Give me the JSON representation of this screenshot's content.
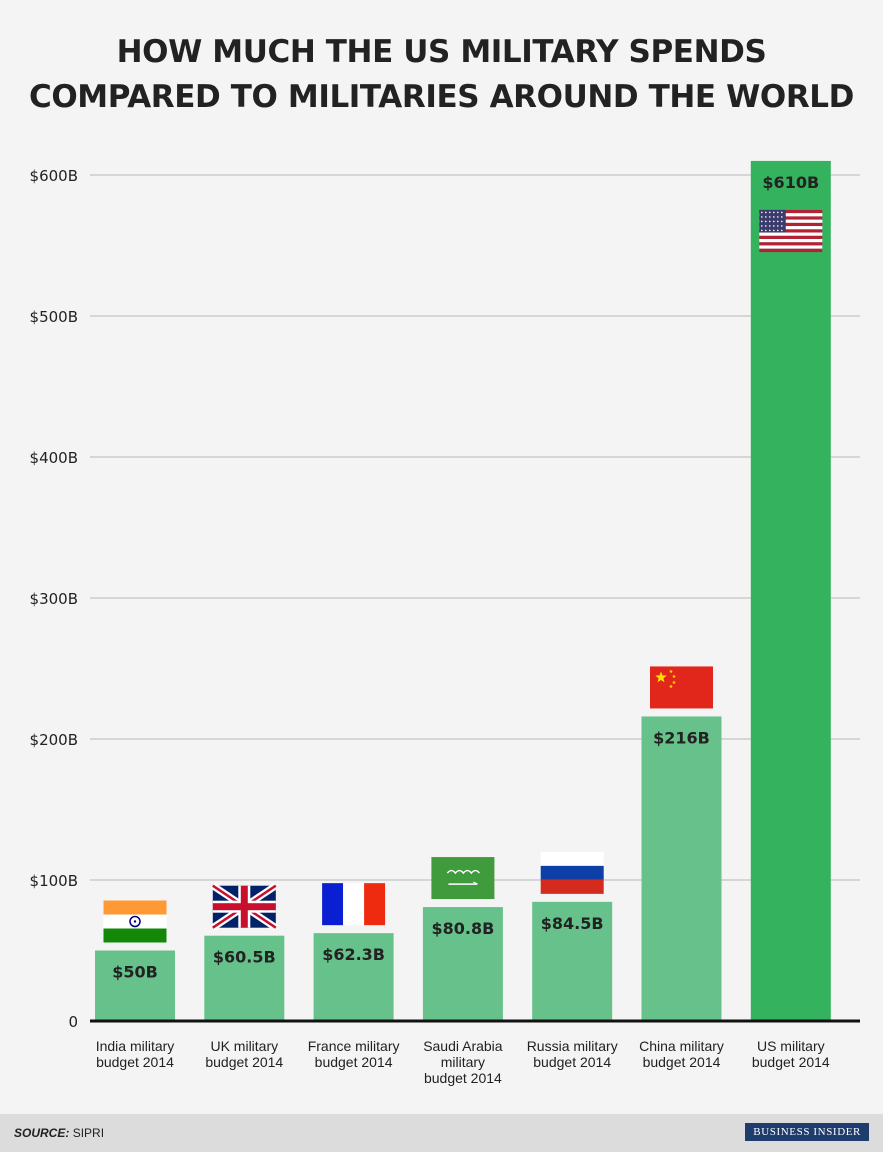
{
  "chart_data": {
    "type": "bar",
    "title": "HOW MUCH THE US MILITARY SPENDS COMPARED TO MILITARIES AROUND THE WORLD",
    "title_lines": [
      "HOW MUCH THE US MILITARY SPENDS",
      "COMPARED TO MILITARIES AROUND THE WORLD"
    ],
    "categories": [
      "India military budget 2014",
      "UK military budget 2014",
      "France military budget 2014",
      "Saudi Arabia military budget 2014",
      "Russia military budget 2014",
      "China military budget 2014",
      "US military budget 2014"
    ],
    "category_lines": [
      [
        "India military",
        "budget 2014"
      ],
      [
        "UK military",
        "budget 2014"
      ],
      [
        "France military",
        "budget 2014"
      ],
      [
        "Saudi Arabia",
        "military",
        "budget 2014"
      ],
      [
        "Russia military",
        "budget 2014"
      ],
      [
        "China military",
        "budget 2014"
      ],
      [
        "US military",
        "budget 2014"
      ]
    ],
    "values": [
      50,
      60.5,
      62.3,
      80.8,
      84.5,
      216,
      610
    ],
    "value_labels": [
      "$50B",
      "$60.5B",
      "$62.3B",
      "$80.8B",
      "$84.5B",
      "$216B",
      "$610B"
    ],
    "flags": [
      "india-flag",
      "uk-flag",
      "france-flag",
      "saudi-arabia-flag",
      "russia-flag",
      "china-flag",
      "us-flag"
    ],
    "y_ticks": [
      0,
      100,
      200,
      300,
      400,
      500,
      600
    ],
    "y_tick_labels": [
      "0",
      "$100B",
      "$200B",
      "$300B",
      "$400B",
      "$500B",
      "$600B"
    ],
    "ylim": [
      0,
      610
    ],
    "grid": true,
    "colors": {
      "bar": "#66c28a",
      "highlight_bar": "#35b25e",
      "grid": "#cccccc",
      "axis": "#111111"
    }
  },
  "footer": {
    "source_label": "SOURCE:",
    "source_value": "SIPRI",
    "logo": "BUSINESS INSIDER"
  }
}
